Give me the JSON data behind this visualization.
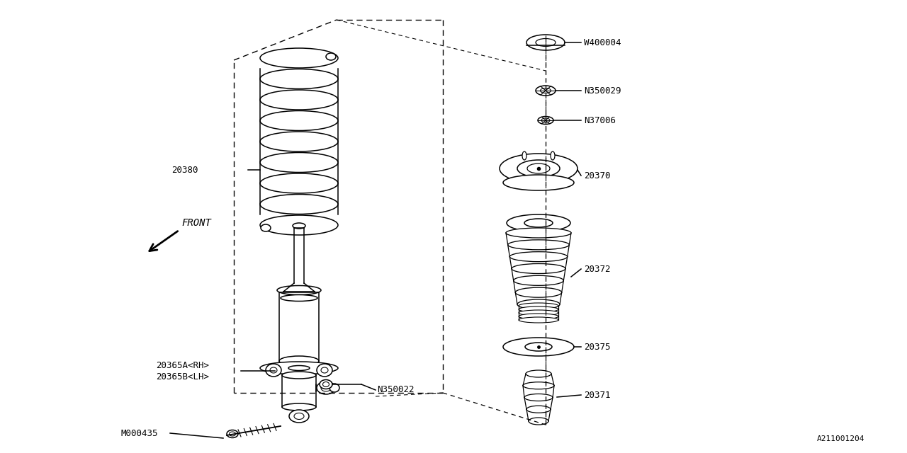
{
  "bg_color": "#ffffff",
  "line_color": "#000000",
  "text_color": "#000000",
  "diagram_ref": "A211001204",
  "parts_labels": {
    "W400004": "W400004",
    "N350029": "N350029",
    "N37006": "N37006",
    "20370": "20370",
    "20372": "20372",
    "20375": "20375",
    "20371": "20371",
    "20380": "20380",
    "20365A": "20365A<RH>",
    "20365B": "20365B<LH>",
    "N350022": "N350022",
    "M000435": "M000435"
  }
}
